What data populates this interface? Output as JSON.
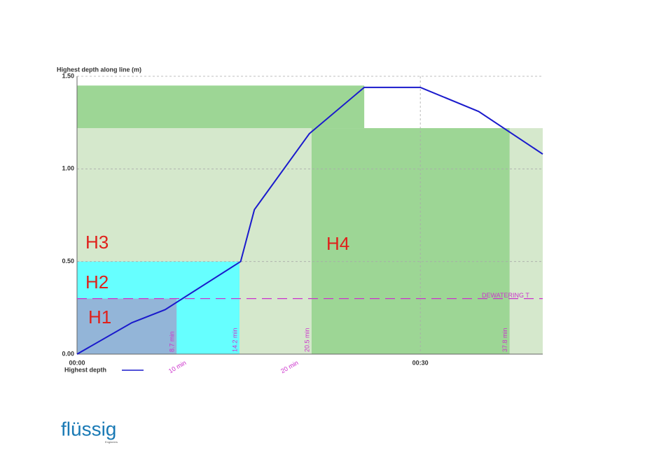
{
  "chart_data": {
    "type": "line",
    "y_label": "Highest depth along line (m)",
    "x": [
      0,
      4.8,
      7.7,
      14.3,
      15.5,
      20.3,
      25.1,
      30,
      35.1,
      40.7
    ],
    "series": [
      {
        "name": "Highest depth",
        "color": "#1a1acc",
        "values": [
          0,
          0.17,
          0.24,
          0.5,
          0.78,
          1.19,
          1.44,
          1.44,
          1.31,
          1.08
        ]
      }
    ],
    "xlim": [
      0,
      40.7
    ],
    "ylim": [
      0,
      1.5
    ],
    "xticks": [
      {
        "value": 0,
        "label": "00:00"
      },
      {
        "value": 30,
        "label": "00:30"
      }
    ],
    "yticks": [
      {
        "value": 0,
        "label": "0.00"
      },
      {
        "value": 0.5,
        "label": "0.50"
      },
      {
        "value": 1,
        "label": "1.00"
      },
      {
        "value": 1.5,
        "label": "1.50"
      }
    ],
    "grid": true,
    "zones": [
      {
        "name": "H3",
        "x": [
          0,
          40.7
        ],
        "y": [
          0,
          1.22
        ],
        "color": "#d5e8cc"
      },
      {
        "x": [
          0,
          25.1
        ],
        "y": [
          1.22,
          1.45
        ],
        "color": "#9dd695"
      },
      {
        "name": "H4",
        "x": [
          20.5,
          37.8
        ],
        "y": [
          0,
          1.22
        ],
        "color": "#9dd695"
      },
      {
        "name": "H2",
        "x": [
          0,
          14.2
        ],
        "y": [
          0,
          0.5
        ],
        "color": "#66ffff"
      },
      {
        "name": "H1",
        "x": [
          0,
          8.7
        ],
        "y": [
          0,
          0.3
        ],
        "color": "#93b5d8"
      }
    ],
    "markers": [
      {
        "value": 8.7,
        "label": "8.7 min"
      },
      {
        "value": 14.2,
        "label": "14.2 min"
      },
      {
        "value": 20.5,
        "label": "20.5 min"
      },
      {
        "value": 37.8,
        "label": "37.8 min"
      }
    ],
    "time_labels": [
      {
        "value": 9.5,
        "label": "10 min"
      },
      {
        "value": 19.3,
        "label": "20 min"
      }
    ],
    "threshold": {
      "value": 0.3,
      "label": "DEWATERING T",
      "color": "#cc33cc"
    }
  },
  "logo": {
    "name": "flüssig",
    "tagline": "Engineers"
  }
}
